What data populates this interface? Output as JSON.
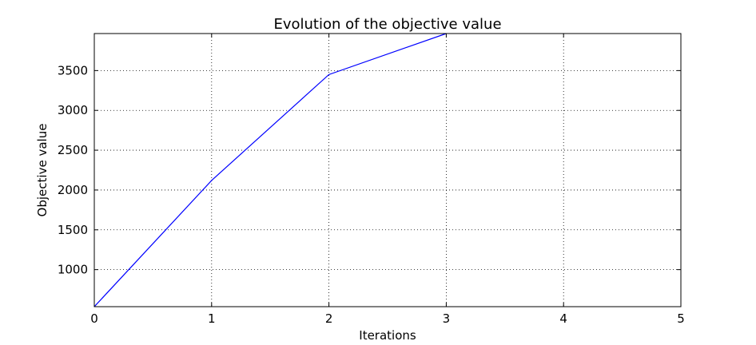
{
  "chart_data": {
    "type": "line",
    "title": "Evolution of the objective value",
    "xlabel": "Iterations",
    "ylabel": "Objective value",
    "xlim": [
      0,
      5
    ],
    "ylim": [
      535,
      3965
    ],
    "xticks": [
      0,
      1,
      2,
      3,
      4,
      5
    ],
    "yticks": [
      1000,
      1500,
      2000,
      2500,
      3000,
      3500
    ],
    "grid": true,
    "series": [
      {
        "x": [
          0,
          1,
          2,
          3
        ],
        "values": [
          535,
          2120,
          3450,
          3965
        ],
        "color": "#0000ff"
      }
    ]
  }
}
